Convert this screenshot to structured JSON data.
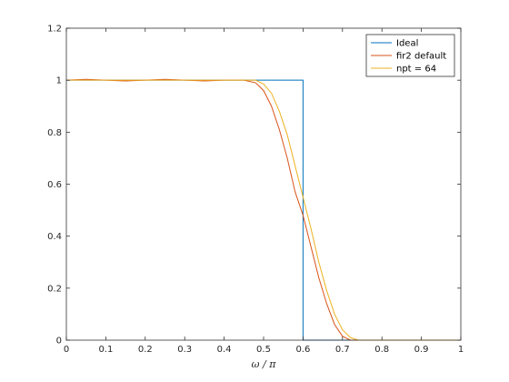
{
  "chart_data": {
    "type": "line",
    "title": "",
    "xlabel": "ω / π",
    "ylabel": "",
    "xlim": [
      0,
      1
    ],
    "ylim": [
      0,
      1.2
    ],
    "xticks": [
      0,
      0.1,
      0.2,
      0.3,
      0.4,
      0.5,
      0.6,
      0.7,
      0.8,
      0.9,
      1
    ],
    "yticks": [
      0,
      0.2,
      0.4,
      0.6,
      0.8,
      1,
      1.2
    ],
    "xtick_labels": [
      "0",
      "0.1",
      "0.2",
      "0.3",
      "0.4",
      "0.5",
      "0.6",
      "0.7",
      "0.8",
      "0.9",
      "1"
    ],
    "ytick_labels": [
      "0",
      "0.2",
      "0.4",
      "0.6",
      "0.8",
      "1",
      "1.2"
    ],
    "grid": false,
    "legend_position": "top-right",
    "series": [
      {
        "name": "Ideal",
        "color": "#0072BD",
        "x": [
          0,
          0.6,
          0.6,
          1
        ],
        "y": [
          1,
          1,
          0,
          0
        ]
      },
      {
        "name": "fir2 default",
        "color": "#D95319",
        "x": [
          0,
          0.05,
          0.1,
          0.15,
          0.2,
          0.25,
          0.3,
          0.35,
          0.4,
          0.45,
          0.48,
          0.5,
          0.52,
          0.54,
          0.56,
          0.58,
          0.6,
          0.62,
          0.64,
          0.66,
          0.68,
          0.7,
          0.72,
          0.75,
          0.8,
          0.9,
          1
        ],
        "y": [
          1,
          1.003,
          1,
          0.997,
          1,
          1.003,
          1,
          0.997,
          1,
          1,
          0.99,
          0.96,
          0.9,
          0.81,
          0.7,
          0.57,
          0.48,
          0.36,
          0.24,
          0.14,
          0.06,
          0.015,
          0,
          0,
          0,
          0,
          0
        ]
      },
      {
        "name": "npt = 64",
        "color": "#EDB120",
        "x": [
          0,
          0.05,
          0.1,
          0.15,
          0.2,
          0.25,
          0.3,
          0.35,
          0.4,
          0.45,
          0.48,
          0.5,
          0.52,
          0.54,
          0.56,
          0.58,
          0.6,
          0.62,
          0.64,
          0.66,
          0.68,
          0.7,
          0.72,
          0.74,
          0.8,
          0.9,
          1
        ],
        "y": [
          1,
          1,
          1,
          1,
          1,
          1,
          1,
          1,
          1,
          1,
          1,
          0.985,
          0.95,
          0.88,
          0.79,
          0.67,
          0.55,
          0.43,
          0.3,
          0.19,
          0.1,
          0.04,
          0.01,
          0,
          0,
          0,
          0
        ]
      }
    ]
  }
}
